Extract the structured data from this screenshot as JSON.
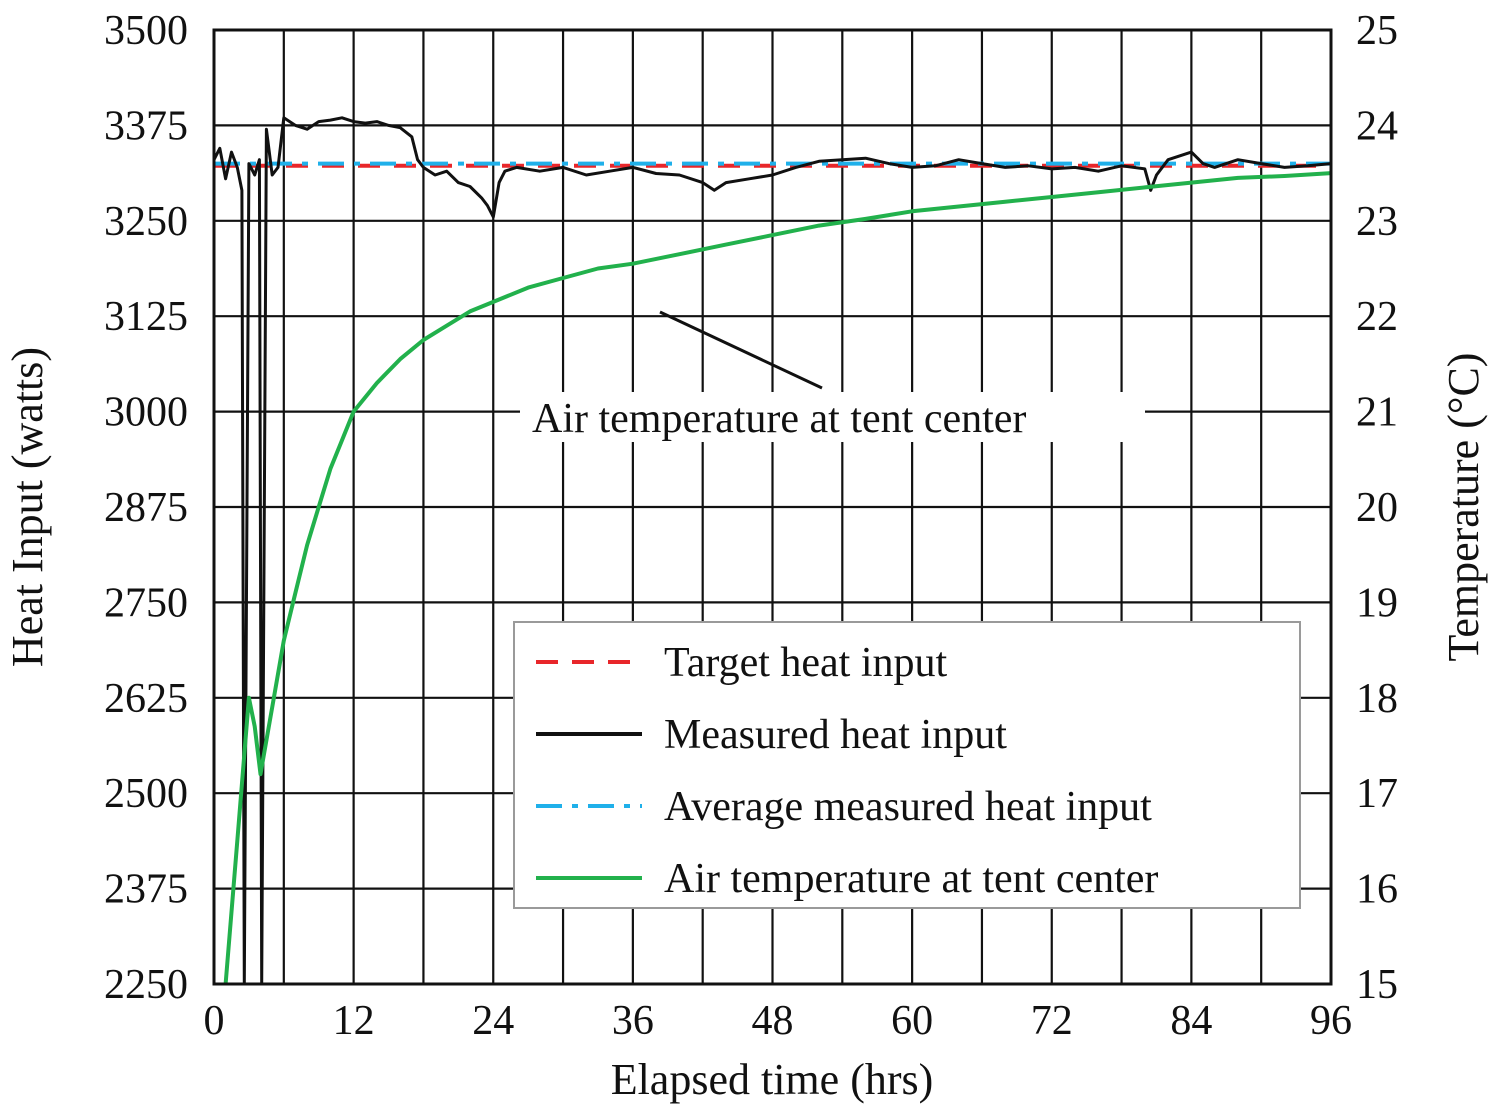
{
  "chart_data": {
    "type": "line",
    "xlabel": "Elapsed time (hrs)",
    "ylabel": "Heat Input (watts)",
    "y2label": "Temperature (°C)",
    "xlim": [
      0,
      96
    ],
    "ylim": [
      2250,
      3500
    ],
    "y2lim": [
      15,
      25
    ],
    "x_ticks": [
      "0",
      "12",
      "24",
      "36",
      "48",
      "60",
      "72",
      "84",
      "96"
    ],
    "y_ticks": [
      "2250",
      "2375",
      "2500",
      "2625",
      "2750",
      "2875",
      "3000",
      "3125",
      "3250",
      "3375",
      "3500"
    ],
    "y2_ticks": [
      "15",
      "16",
      "17",
      "18",
      "19",
      "20",
      "21",
      "22",
      "23",
      "24",
      "25"
    ],
    "grid": true,
    "legend_position": "bottom-right",
    "annotation": "Air temperature at tent center",
    "series": [
      {
        "name": "Target heat input",
        "axis": "left",
        "style": "dashed",
        "color": "#e8262a",
        "x": [
          0,
          96
        ],
        "y": [
          3322,
          3322
        ]
      },
      {
        "name": "Measured heat input",
        "axis": "left",
        "style": "solid",
        "color": "#111111",
        "x": [
          0,
          0.5,
          1,
          1.5,
          2,
          2.4,
          2.6,
          3,
          3.5,
          3.9,
          4.1,
          4.5,
          5,
          5.5,
          6,
          7,
          8,
          9,
          10,
          11,
          12,
          13,
          14,
          15,
          16,
          17,
          17.5,
          18,
          19,
          20,
          21,
          22,
          23,
          23.5,
          24,
          24.5,
          25,
          26,
          28,
          30,
          32,
          34,
          36,
          38,
          40,
          42,
          43,
          44,
          46,
          48,
          50,
          52,
          54,
          56,
          58,
          60,
          62,
          64,
          66,
          68,
          70,
          72,
          74,
          76,
          78,
          80,
          80.5,
          81,
          82,
          84,
          85,
          86,
          88,
          90,
          92,
          94,
          96
        ],
        "y": [
          3330,
          3345,
          3305,
          3340,
          3320,
          3290,
          2250,
          3325,
          3310,
          3330,
          2250,
          3370,
          3310,
          3320,
          3385,
          3375,
          3370,
          3380,
          3382,
          3385,
          3380,
          3378,
          3380,
          3375,
          3372,
          3360,
          3330,
          3320,
          3310,
          3315,
          3300,
          3295,
          3280,
          3270,
          3255,
          3300,
          3315,
          3320,
          3315,
          3320,
          3310,
          3315,
          3320,
          3312,
          3310,
          3300,
          3290,
          3300,
          3305,
          3310,
          3320,
          3328,
          3330,
          3332,
          3325,
          3320,
          3322,
          3330,
          3325,
          3320,
          3322,
          3318,
          3320,
          3315,
          3322,
          3318,
          3290,
          3310,
          3330,
          3340,
          3325,
          3320,
          3330,
          3325,
          3320,
          3322,
          3325
        ]
      },
      {
        "name": "Average measured heat input",
        "axis": "left",
        "style": "dash-dot",
        "color": "#1fb0ea",
        "x": [
          0,
          96
        ],
        "y": [
          3325,
          3325
        ]
      },
      {
        "name": "Air temperature at tent center",
        "axis": "right",
        "style": "solid",
        "color": "#22b14c",
        "x": [
          1,
          2,
          3,
          3.5,
          4,
          5,
          6,
          7,
          8,
          9,
          10,
          11,
          12,
          14,
          16,
          18,
          20,
          22,
          24,
          27,
          30,
          33,
          36,
          40,
          44,
          48,
          52,
          56,
          60,
          64,
          68,
          72,
          76,
          80,
          84,
          88,
          92,
          96
        ],
        "y": [
          15.0,
          16.5,
          18.0,
          17.7,
          17.2,
          17.9,
          18.6,
          19.1,
          19.6,
          20.0,
          20.4,
          20.7,
          21.0,
          21.3,
          21.55,
          21.75,
          21.9,
          22.05,
          22.15,
          22.3,
          22.4,
          22.5,
          22.55,
          22.65,
          22.75,
          22.85,
          22.95,
          23.02,
          23.1,
          23.15,
          23.2,
          23.25,
          23.3,
          23.35,
          23.4,
          23.45,
          23.47,
          23.5
        ]
      }
    ]
  }
}
